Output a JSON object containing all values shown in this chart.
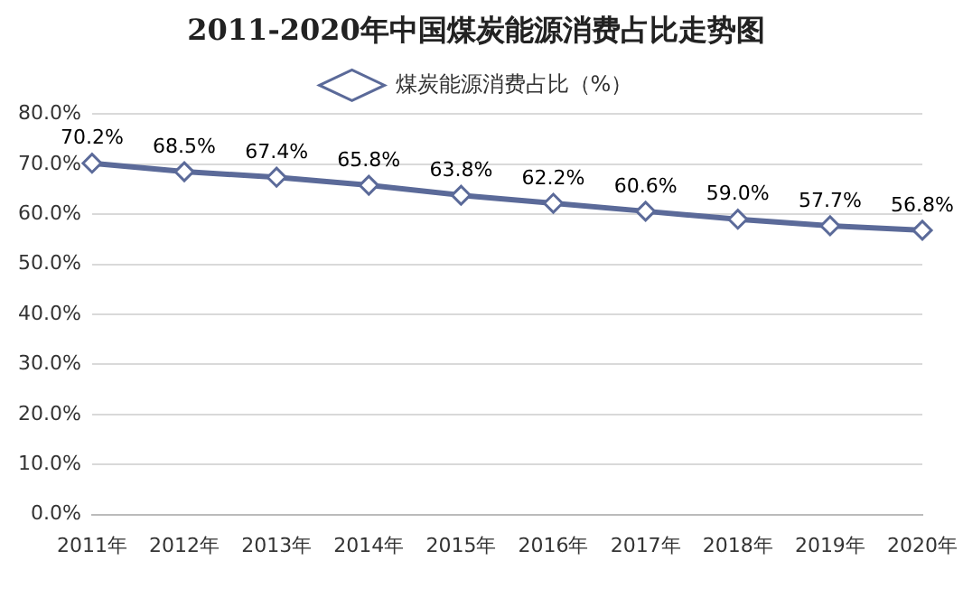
{
  "chart_data": {
    "type": "line",
    "title": "2011-2020年中国煤炭能源消费占比走势图",
    "categories": [
      "2011年",
      "2012年",
      "2013年",
      "2014年",
      "2015年",
      "2016年",
      "2017年",
      "2018年",
      "2019年",
      "2020年"
    ],
    "series": [
      {
        "name": "煤炭能源消费占比（%）",
        "color": "#5b6a99",
        "values": [
          70.2,
          68.5,
          67.4,
          65.8,
          63.8,
          62.2,
          60.6,
          59.0,
          57.7,
          56.8
        ],
        "value_labels": [
          "70.2%",
          "68.5%",
          "67.4%",
          "65.8%",
          "63.8%",
          "62.2%",
          "60.6%",
          "59.0%",
          "57.7%",
          "56.8%"
        ]
      }
    ],
    "ylim": [
      0,
      80
    ],
    "yticks": [
      {
        "value": 0,
        "label": "0.0%"
      },
      {
        "value": 10,
        "label": "10.0%"
      },
      {
        "value": 20,
        "label": "20.0%"
      },
      {
        "value": 30,
        "label": "30.0%"
      },
      {
        "value": 40,
        "label": "40.0%"
      },
      {
        "value": 50,
        "label": "50.0%"
      },
      {
        "value": 60,
        "label": "60.0%"
      },
      {
        "value": 70,
        "label": "70.0%"
      },
      {
        "value": 80,
        "label": "80.0%"
      }
    ],
    "grid": "y",
    "legend": "top",
    "marker": "diamond",
    "line_style": "solid"
  }
}
